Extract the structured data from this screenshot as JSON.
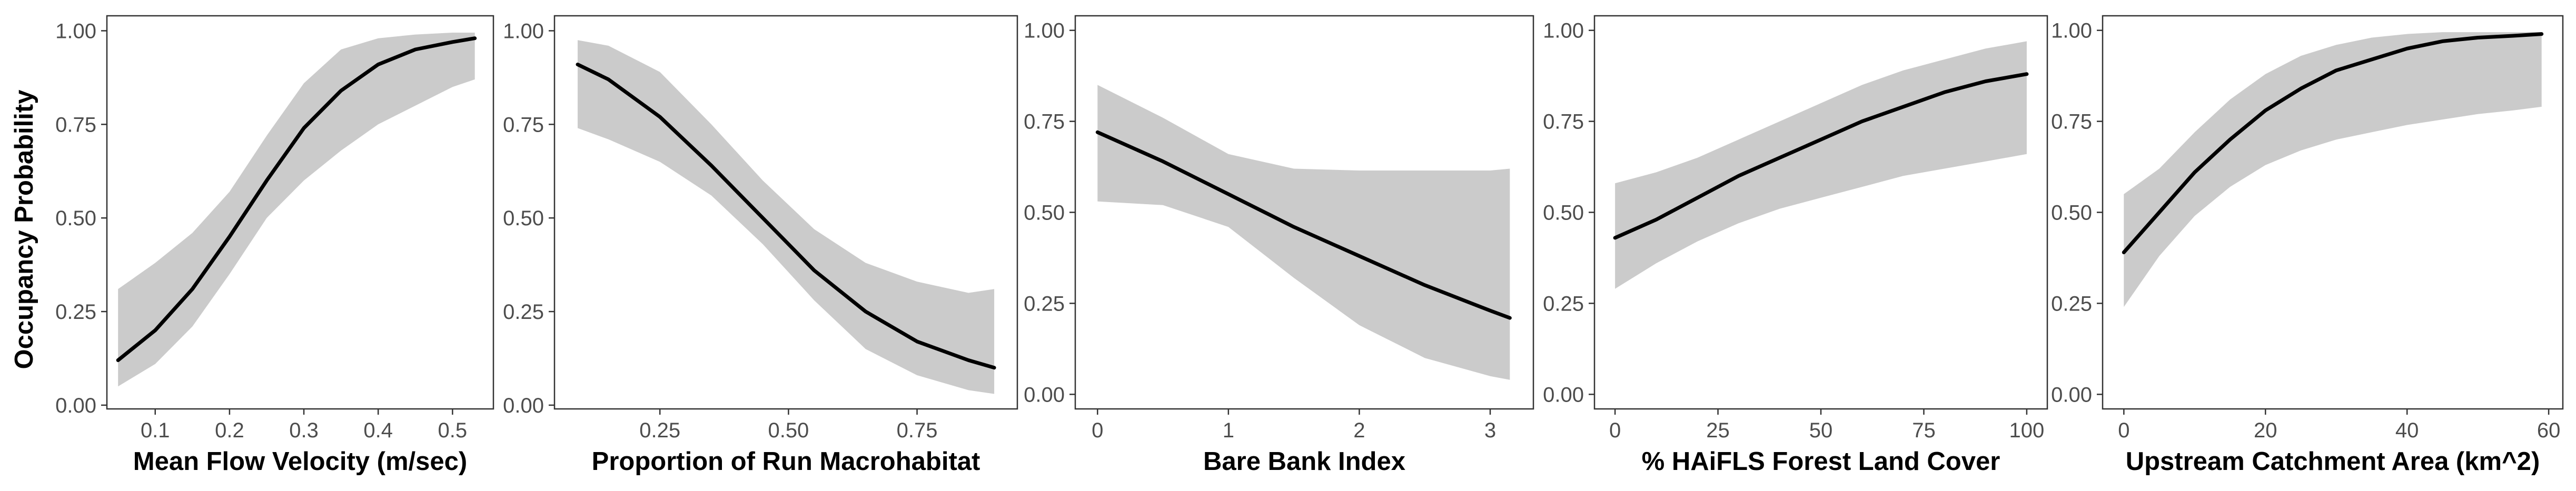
{
  "chart_data": [
    {
      "type": "line",
      "title": "",
      "xlabel": "Mean Flow Velocity (m/sec)",
      "ylabel": "Occupancy Probability",
      "xlim": [
        0.035,
        0.555
      ],
      "ylim": [
        -0.01,
        1.04
      ],
      "xticks": [
        0.1,
        0.2,
        0.3,
        0.4,
        0.5
      ],
      "xtick_labels": [
        "0.1",
        "0.2",
        "0.3",
        "0.4",
        "0.5"
      ],
      "yticks": [
        0,
        0.25,
        0.5,
        0.75,
        1
      ],
      "ytick_labels": [
        "0.00",
        "0.25",
        "0.50",
        "0.75",
        "1.00"
      ],
      "grid": false,
      "series": [
        {
          "x": [
            0.05,
            0.1,
            0.15,
            0.2,
            0.25,
            0.3,
            0.35,
            0.4,
            0.45,
            0.5,
            0.53
          ],
          "y": [
            0.12,
            0.2,
            0.31,
            0.45,
            0.6,
            0.74,
            0.84,
            0.91,
            0.95,
            0.97,
            0.98
          ],
          "lower": [
            0.05,
            0.11,
            0.21,
            0.35,
            0.5,
            0.6,
            0.68,
            0.75,
            0.8,
            0.85,
            0.87
          ],
          "upper": [
            0.31,
            0.38,
            0.46,
            0.57,
            0.72,
            0.86,
            0.95,
            0.98,
            0.99,
            0.995,
            0.995
          ]
        }
      ]
    },
    {
      "type": "line",
      "title": "",
      "xlabel": "Proportion of Run Macrohabitat",
      "ylabel": "",
      "xlim": [
        0.045,
        0.945
      ],
      "ylim": [
        -0.01,
        1.04
      ],
      "xticks": [
        0.25,
        0.5,
        0.75
      ],
      "xtick_labels": [
        "0.25",
        "0.50",
        "0.75"
      ],
      "yticks": [
        0,
        0.25,
        0.5,
        0.75,
        1
      ],
      "ytick_labels": [
        "0.00",
        "0.25",
        "0.50",
        "0.75",
        "1.00"
      ],
      "grid": false,
      "series": [
        {
          "x": [
            0.09,
            0.15,
            0.25,
            0.35,
            0.45,
            0.55,
            0.65,
            0.75,
            0.85,
            0.9
          ],
          "y": [
            0.91,
            0.87,
            0.77,
            0.64,
            0.5,
            0.36,
            0.25,
            0.17,
            0.12,
            0.1
          ],
          "lower": [
            0.74,
            0.71,
            0.65,
            0.56,
            0.43,
            0.28,
            0.15,
            0.08,
            0.04,
            0.03
          ],
          "upper": [
            0.975,
            0.96,
            0.89,
            0.75,
            0.6,
            0.47,
            0.38,
            0.33,
            0.3,
            0.31
          ]
        }
      ]
    },
    {
      "type": "line",
      "title": "",
      "xlabel": "Bare Bank Index",
      "ylabel": "",
      "xlim": [
        -0.17,
        3.33
      ],
      "ylim": [
        -0.04,
        1.04
      ],
      "xticks": [
        0,
        1,
        2,
        3
      ],
      "xtick_labels": [
        "0",
        "1",
        "2",
        "3"
      ],
      "yticks": [
        0,
        0.25,
        0.5,
        0.75,
        1
      ],
      "ytick_labels": [
        "0.00",
        "0.25",
        "0.50",
        "0.75",
        "1.00"
      ],
      "grid": false,
      "series": [
        {
          "x": [
            0,
            0.5,
            1,
            1.5,
            2,
            2.5,
            3,
            3.15
          ],
          "y": [
            0.72,
            0.64,
            0.55,
            0.46,
            0.38,
            0.3,
            0.23,
            0.21
          ],
          "lower": [
            0.53,
            0.52,
            0.46,
            0.32,
            0.19,
            0.1,
            0.05,
            0.04
          ],
          "upper": [
            0.85,
            0.76,
            0.66,
            0.62,
            0.615,
            0.615,
            0.615,
            0.62
          ]
        }
      ]
    },
    {
      "type": "line",
      "title": "",
      "xlabel": "% HAiFLS Forest Land Cover",
      "ylabel": "",
      "xlim": [
        -5,
        105
      ],
      "ylim": [
        -0.04,
        1.04
      ],
      "xticks": [
        0,
        25,
        50,
        75,
        100
      ],
      "xtick_labels": [
        "0",
        "25",
        "50",
        "75",
        "100"
      ],
      "yticks": [
        0,
        0.25,
        0.5,
        0.75,
        1
      ],
      "ytick_labels": [
        "0.00",
        "0.25",
        "0.50",
        "0.75",
        "1.00"
      ],
      "grid": false,
      "series": [
        {
          "x": [
            0,
            10,
            20,
            30,
            40,
            50,
            60,
            70,
            80,
            90,
            100
          ],
          "y": [
            0.43,
            0.48,
            0.54,
            0.6,
            0.65,
            0.7,
            0.75,
            0.79,
            0.83,
            0.86,
            0.88
          ],
          "lower": [
            0.29,
            0.36,
            0.42,
            0.47,
            0.51,
            0.54,
            0.57,
            0.6,
            0.62,
            0.64,
            0.66
          ],
          "upper": [
            0.58,
            0.61,
            0.65,
            0.7,
            0.75,
            0.8,
            0.85,
            0.89,
            0.92,
            0.95,
            0.97
          ]
        }
      ]
    },
    {
      "type": "line",
      "title": "",
      "xlabel": "Upstream Catchment Area (km^2)",
      "ylabel": "",
      "xlim": [
        -3,
        62
      ],
      "ylim": [
        -0.04,
        1.04
      ],
      "xticks": [
        0,
        20,
        40,
        60
      ],
      "xtick_labels": [
        "0",
        "20",
        "40",
        "60"
      ],
      "yticks": [
        0,
        0.25,
        0.5,
        0.75,
        1
      ],
      "ytick_labels": [
        "0.00",
        "0.25",
        "0.50",
        "0.75",
        "1.00"
      ],
      "grid": false,
      "series": [
        {
          "x": [
            0,
            5,
            10,
            15,
            20,
            25,
            30,
            35,
            40,
            45,
            50,
            55,
            59
          ],
          "y": [
            0.39,
            0.5,
            0.61,
            0.7,
            0.78,
            0.84,
            0.89,
            0.92,
            0.95,
            0.97,
            0.98,
            0.985,
            0.99
          ],
          "lower": [
            0.24,
            0.38,
            0.49,
            0.57,
            0.63,
            0.67,
            0.7,
            0.72,
            0.74,
            0.755,
            0.77,
            0.78,
            0.79
          ],
          "upper": [
            0.55,
            0.62,
            0.72,
            0.81,
            0.88,
            0.93,
            0.96,
            0.98,
            0.99,
            0.995,
            0.995,
            0.995,
            0.995
          ]
        }
      ]
    }
  ]
}
